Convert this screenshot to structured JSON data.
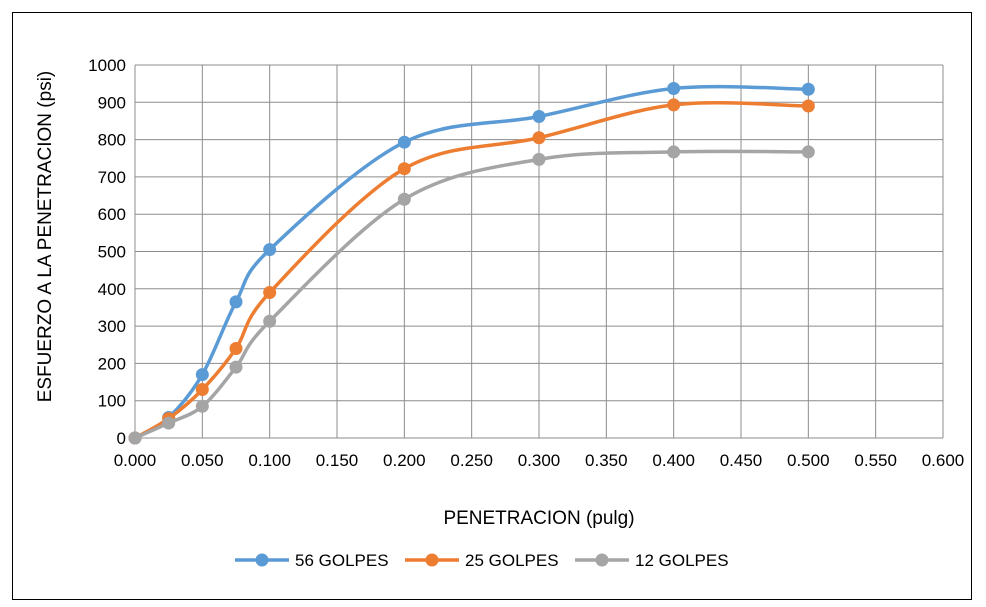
{
  "chart_data": {
    "type": "line",
    "title": "",
    "xlabel": "PENETRACION (pulg)",
    "ylabel": "ESFUERZO A LA PENETRACION (psi)",
    "xlim": [
      0,
      0.6
    ],
    "ylim": [
      0,
      1000
    ],
    "x_ticks": [
      "0.000",
      "0.050",
      "0.100",
      "0.150",
      "0.200",
      "0.250",
      "0.300",
      "0.350",
      "0.400",
      "0.450",
      "0.500",
      "0.550",
      "0.600"
    ],
    "y_ticks": [
      "0",
      "100",
      "200",
      "300",
      "400",
      "500",
      "600",
      "700",
      "800",
      "900",
      "1000"
    ],
    "grid": true,
    "legend_position": "bottom",
    "x": [
      0.0,
      0.025,
      0.05,
      0.075,
      0.1,
      0.2,
      0.3,
      0.4,
      0.5
    ],
    "series": [
      {
        "name": "56 GOLPES",
        "color": "#5b9bd5",
        "values": [
          0,
          55,
          170,
          365,
          505,
          793,
          862,
          937,
          935
        ]
      },
      {
        "name": "25 GOLPES",
        "color": "#ed7d31",
        "values": [
          0,
          52,
          130,
          240,
          390,
          722,
          805,
          893,
          890
        ]
      },
      {
        "name": "12 GOLPES",
        "color": "#a5a5a5",
        "values": [
          0,
          40,
          85,
          190,
          313,
          640,
          747,
          767,
          767
        ]
      }
    ]
  }
}
